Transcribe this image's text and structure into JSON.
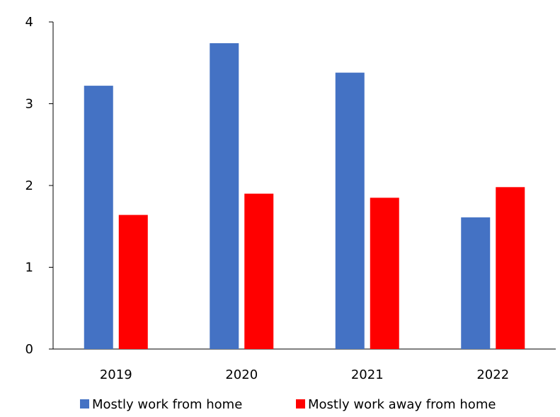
{
  "chart_data": {
    "type": "bar",
    "categories": [
      "2019",
      "2020",
      "2021",
      "2022"
    ],
    "series": [
      {
        "name": "Mostly work from home",
        "values": [
          3.22,
          3.74,
          3.38,
          1.61
        ],
        "color": "#4472C4"
      },
      {
        "name": "Mostly work away from home",
        "values": [
          1.64,
          1.9,
          1.85,
          1.98
        ],
        "color": "#FF0000"
      }
    ],
    "yticks": [
      "0",
      "1",
      "2",
      "3",
      "4"
    ],
    "ylim": [
      0,
      4
    ],
    "grid": false,
    "legend_position": "bottom"
  }
}
